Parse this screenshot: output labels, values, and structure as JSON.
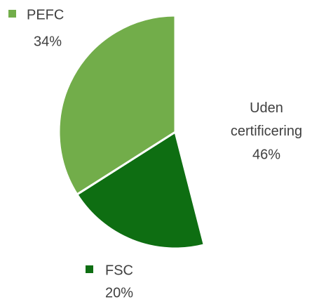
{
  "chart_data": {
    "type": "pie",
    "categories": [
      "Uden certificering",
      "FSC",
      "PEFC"
    ],
    "values": [
      46,
      20,
      34
    ],
    "value_labels": [
      "46%",
      "20%",
      "34%"
    ],
    "colors": [
      "#ffffff",
      "#0e6e12",
      "#72ad4a"
    ]
  }
}
